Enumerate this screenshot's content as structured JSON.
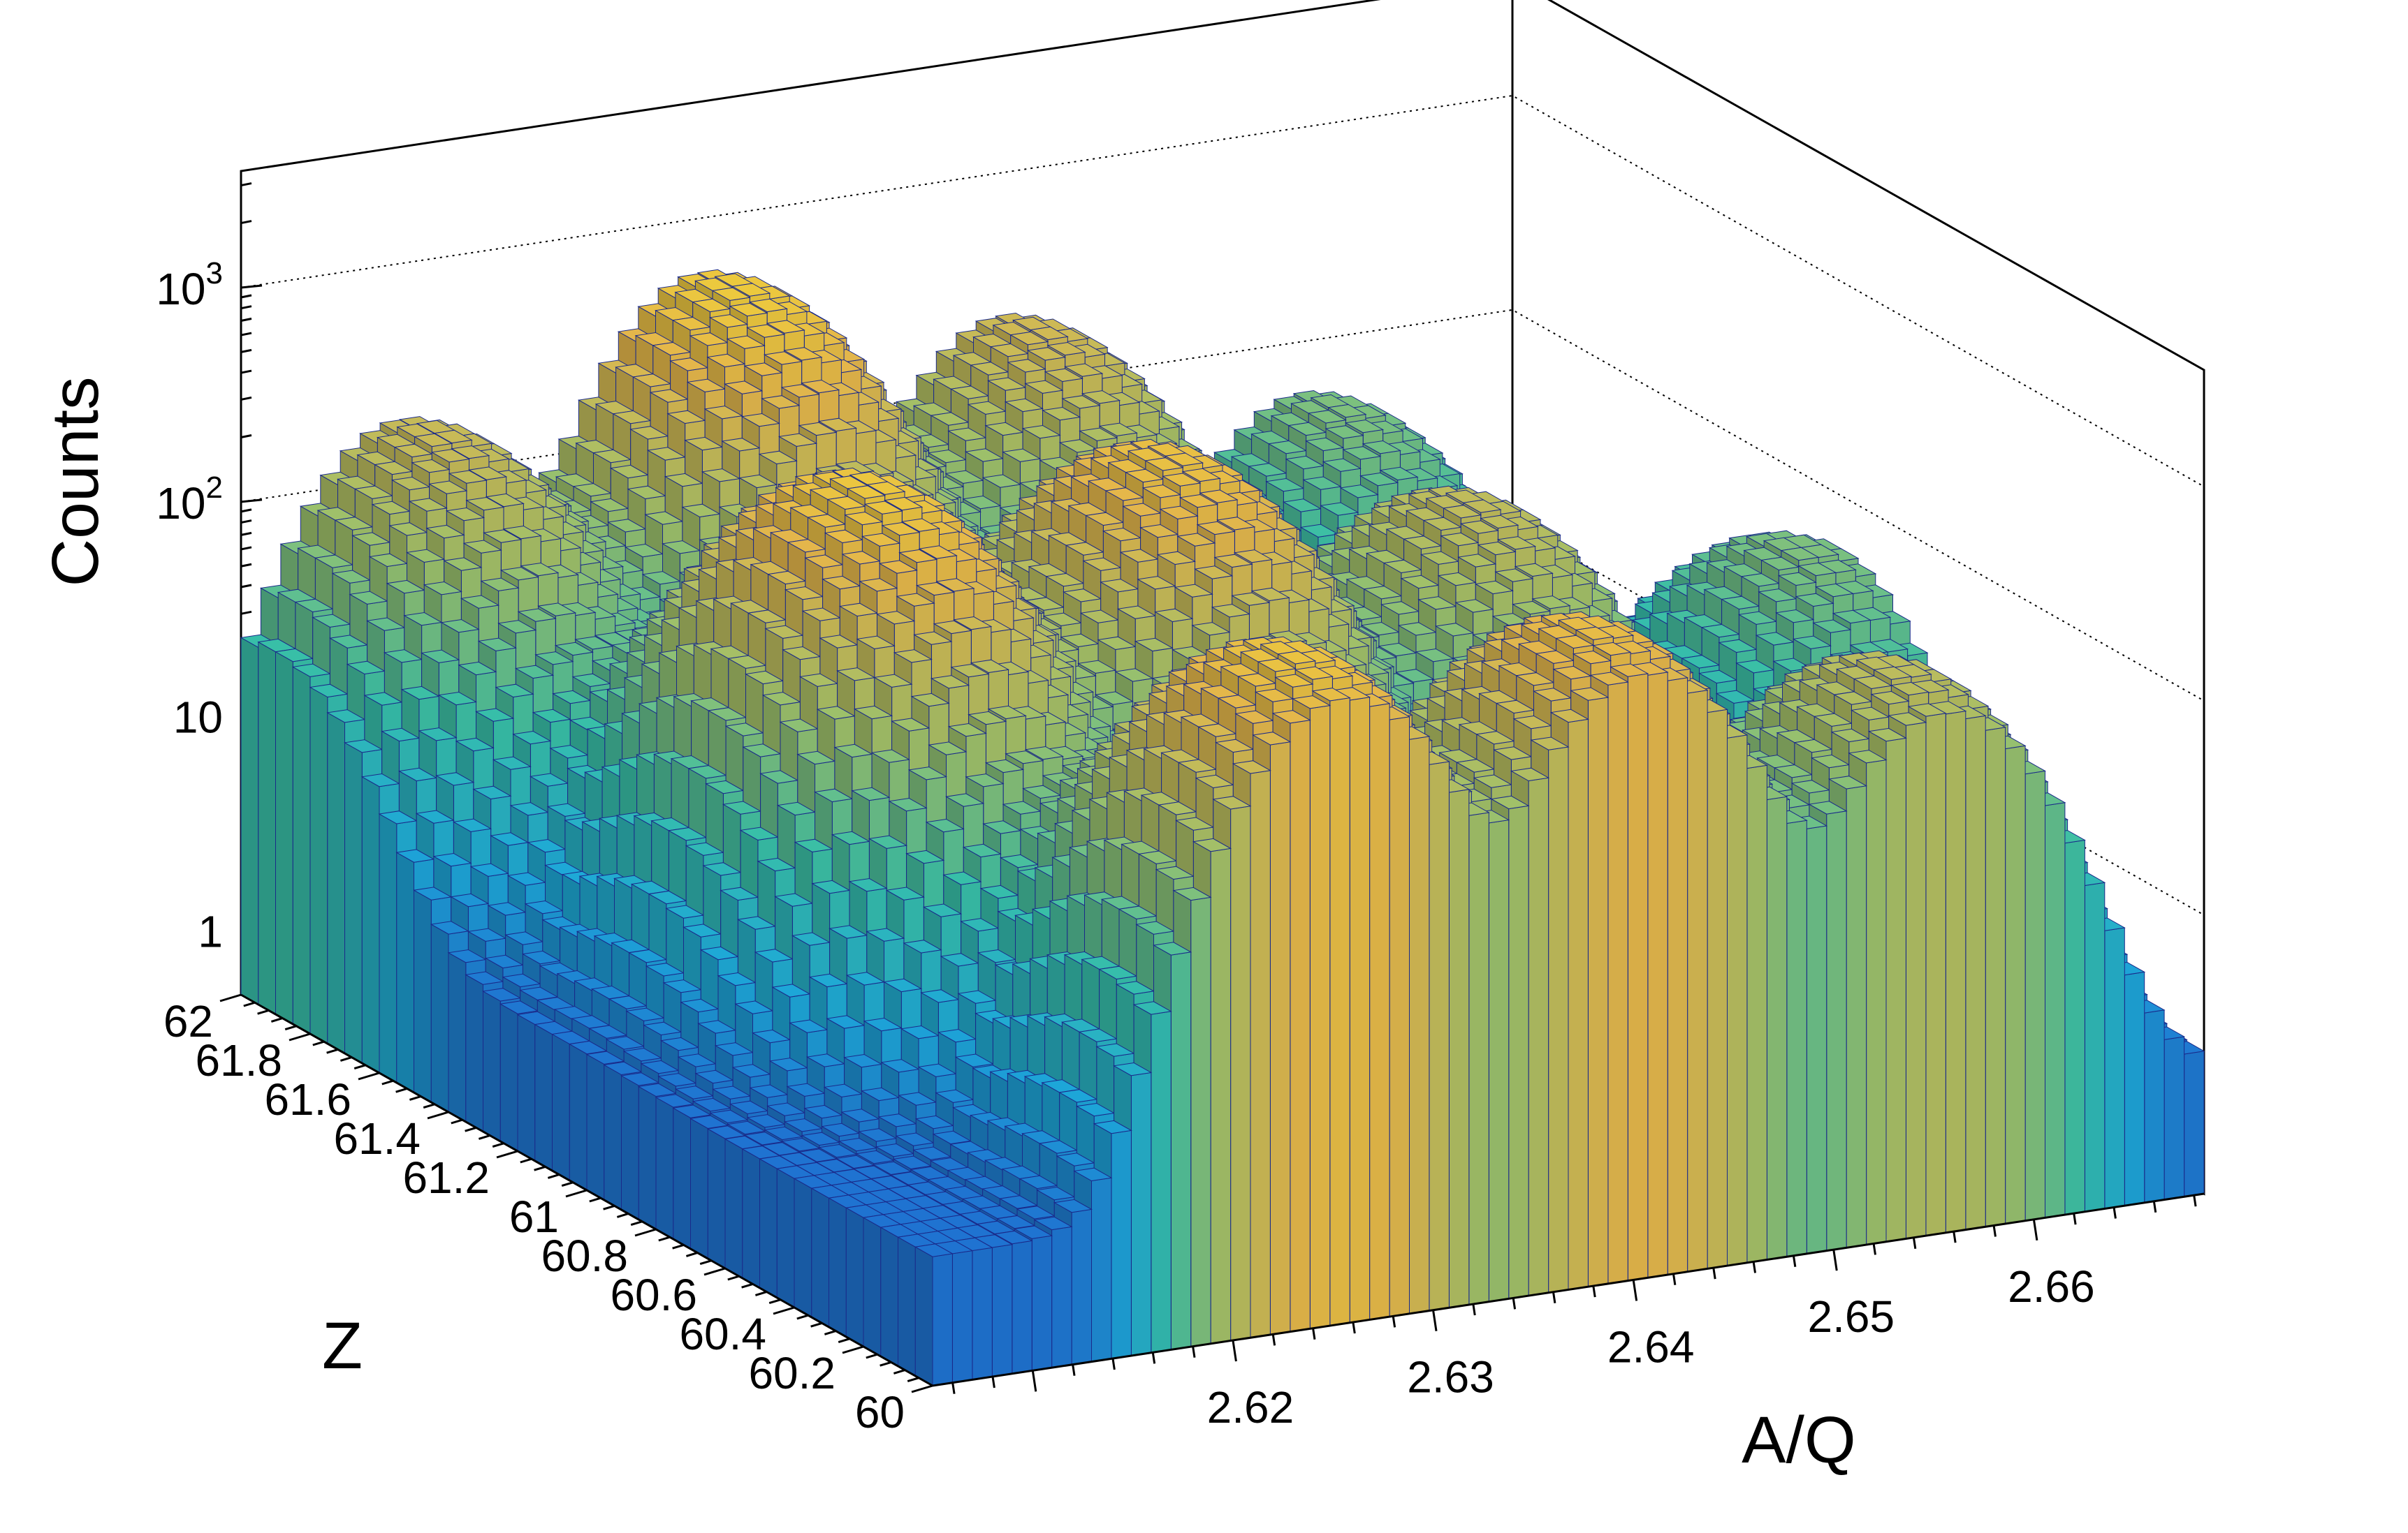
{
  "chart_data": {
    "type": "lego3d",
    "z_axis": {
      "label": "Counts",
      "scale": "log",
      "range": [
        0.5,
        3500
      ],
      "ticks": [
        {
          "value": 1000,
          "base": "10",
          "exp": "3"
        },
        {
          "value": 100,
          "base": "10",
          "exp": "2"
        },
        {
          "value": 10,
          "text": "10"
        },
        {
          "value": 1,
          "text": "1"
        }
      ]
    },
    "x_axis": {
      "label": "A/Q",
      "range": [
        2.605,
        2.6685
      ],
      "ticks": [
        "2.62",
        "2.63",
        "2.64",
        "2.65",
        "2.66"
      ],
      "tick_values": [
        2.62,
        2.63,
        2.64,
        2.65,
        2.66
      ]
    },
    "y_axis": {
      "label": "Z",
      "range": [
        60,
        62
      ],
      "ticks": [
        "60",
        "60.2",
        "60.4",
        "60.6",
        "60.8",
        "61",
        "61.2",
        "61.4",
        "61.6",
        "61.8",
        "62"
      ],
      "tick_values": [
        60,
        60.2,
        60.4,
        60.6,
        60.8,
        61,
        61.2,
        61.4,
        61.6,
        61.8,
        62
      ]
    },
    "peaks": [
      {
        "aq": 2.6255,
        "z": 60.15,
        "counts": 500
      },
      {
        "aq": 2.6405,
        "z": 60.15,
        "counts": 400
      },
      {
        "aq": 2.6555,
        "z": 60.15,
        "counts": 160
      },
      {
        "aq": 2.62,
        "z": 61.05,
        "counts": 550
      },
      {
        "aq": 2.635,
        "z": 61.05,
        "counts": 460
      },
      {
        "aq": 2.65,
        "z": 61.05,
        "counts": 170
      },
      {
        "aq": 2.6665,
        "z": 61.05,
        "counts": 60
      },
      {
        "aq": 2.613,
        "z": 61.9,
        "counts": 200
      },
      {
        "aq": 2.628,
        "z": 61.9,
        "counts": 600
      },
      {
        "aq": 2.643,
        "z": 61.9,
        "counts": 230
      },
      {
        "aq": 2.658,
        "z": 61.9,
        "counts": 60
      }
    ],
    "background_counts": 2,
    "colormap": [
      "#1d2a9a",
      "#1f6fd0",
      "#1da8d8",
      "#38bfa7",
      "#9ec06a",
      "#e4b64b",
      "#f7e12c"
    ],
    "grid": true
  }
}
